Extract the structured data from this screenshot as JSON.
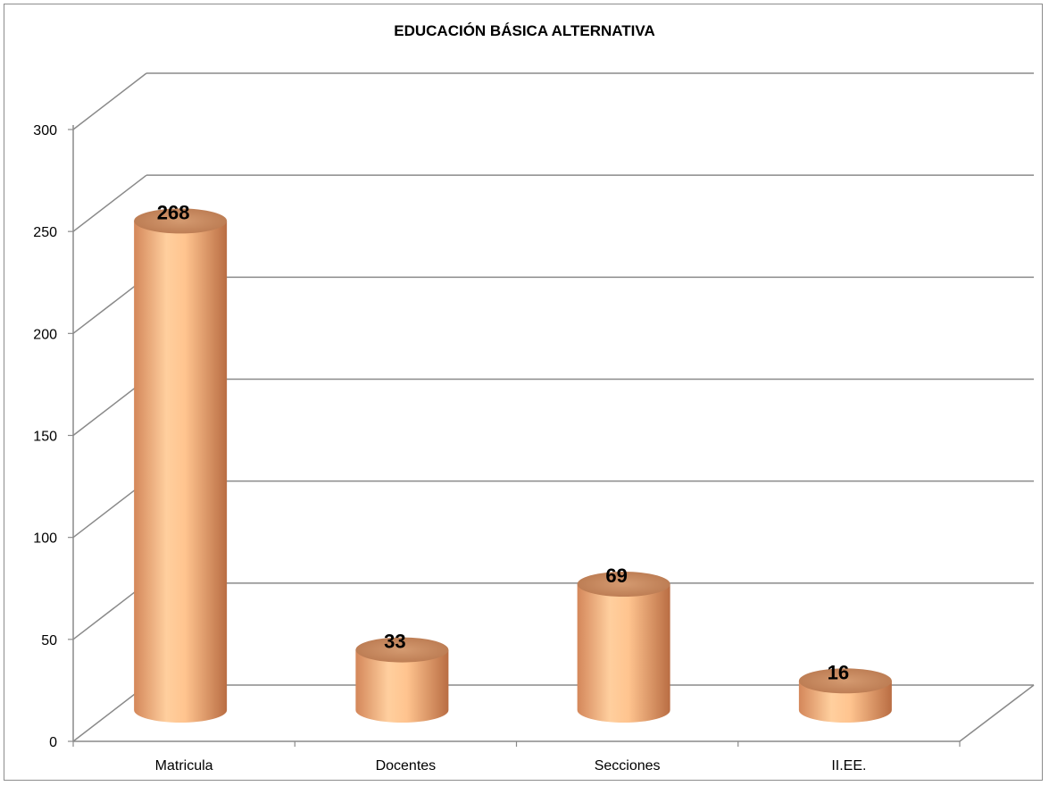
{
  "chart_data": {
    "type": "bar",
    "title": "EDUCACIÓN BÁSICA ALTERNATIVA",
    "categories": [
      "Matricula",
      "Docentes",
      "Secciones",
      "II.EE."
    ],
    "values": [
      268,
      33,
      69,
      16
    ],
    "ylim": [
      0,
      300
    ],
    "yticks": [
      0,
      50,
      100,
      150,
      200,
      250,
      300
    ],
    "grid": true,
    "legend": "none",
    "bar_color": "#f4a46e",
    "bar_top_color": "#c98a5e",
    "three_d": true
  }
}
